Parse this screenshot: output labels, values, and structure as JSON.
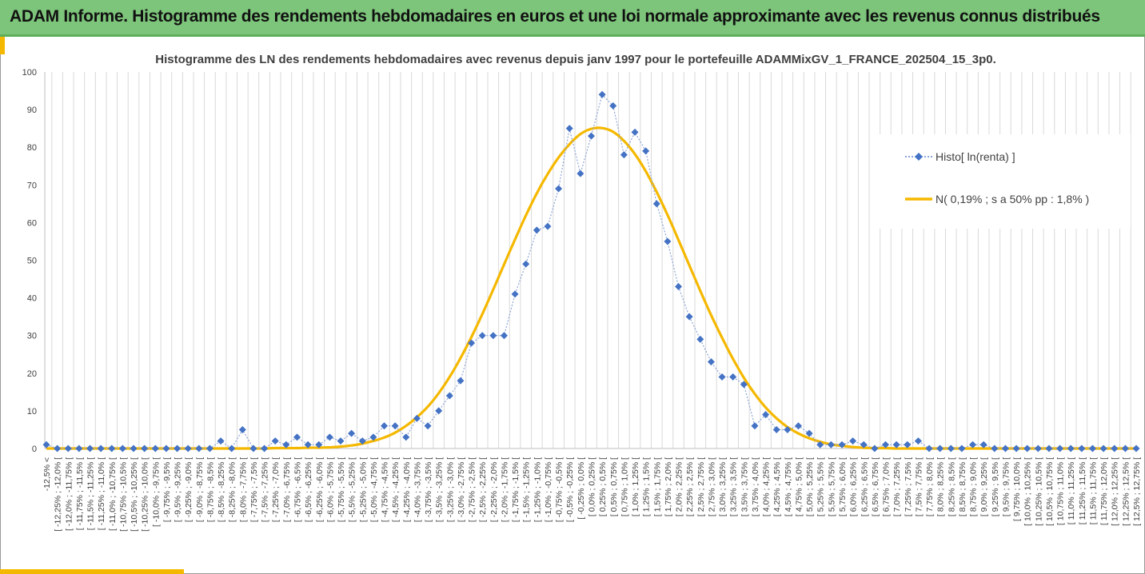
{
  "banner": {
    "title": "ADAM Informe. Histogramme des rendements hebdomadaires en euros et une loi normale approximante avec les revenus connus distribués"
  },
  "chart_data": {
    "type": "line",
    "title": "Histogramme des LN des rendements hebdomadaires avec revenus depuis janv 1997 pour le portefeuille ADAMMixGV_1_FRANCE_202504_15_3p0.",
    "ylim": [
      0,
      100
    ],
    "yticks": [
      0,
      10,
      20,
      30,
      40,
      50,
      60,
      70,
      80,
      90,
      100
    ],
    "grid": "vertical",
    "legend_position": "right",
    "categories": [
      "-12,5% <",
      "[ -12,25% ; -12,0% [",
      "[ -12,0% ; -11,75% [",
      "[ -11,75% ; -11,5% [",
      "[ -11,5% ; -11,25% [",
      "[ -11,25% ; -11,0% [",
      "[ -11,0% ; -10,75% [",
      "[ -10,75% ; -10,5% [",
      "[ -10,5% ; -10,25% [",
      "[ -10,25% ; -10,0% [",
      "[ -10,0% ; -9,75% [",
      "[ -9,75% ; -9,5% [",
      "[ -9,5% ; -9,25% [",
      "[ -9,25% ; -9,0% [",
      "[ -9,0% ; -8,75% [",
      "[ -8,75% ; -8,5% [",
      "[ -8,5% ; -8,25% [",
      "[ -8,25% ; -8,0% [",
      "[ -8,0% ; -7,75% [",
      "[ -7,75% ; -7,5% [",
      "[ -7,5% ; -7,25% [",
      "[ -7,25% ; -7,0% [",
      "[ -7,0% ; -6,75% [",
      "[ -6,75% ; -6,5% [",
      "[ -6,5% ; -6,25% [",
      "[ -6,25% ; -6,0% [",
      "[ -6,0% ; -5,75% [",
      "[ -5,75% ; -5,5% [",
      "[ -5,5% ; -5,25% [",
      "[ -5,25% ; -5,0% [",
      "[ -5,0% ; -4,75% [",
      "[ -4,75% ; -4,5% [",
      "[ -4,5% ; -4,25% [",
      "[ -4,25% ; -4,0% [",
      "[ -4,0% ; -3,75% [",
      "[ -3,75% ; -3,5% [",
      "[ -3,5% ; -3,25% [",
      "[ -3,25% ; -3,0% [",
      "[ -3,0% ; -2,75% [",
      "[ -2,75% ; -2,5% [",
      "[ -2,5% ; -2,25% [",
      "[ -2,25% ; -2,0% [",
      "[ -2,0% ; -1,75% [",
      "[ -1,75% ; -1,5% [",
      "[ -1,5% ; -1,25% [",
      "[ -1,25% ; -1,0% [",
      "[ -1,0% ; -0,75% [",
      "[ -0,75% ; -0,5% [",
      "[ -0,5% ; -0,25% [",
      "[ -0,25% ; 0,0% [",
      "[ 0,0% ; 0,25% [",
      "[ 0,25% ; 0,5% [",
      "[ 0,5% ; 0,75% [",
      "[ 0,75% ; 1,0% [",
      "[ 1,0% ; 1,25% [",
      "[ 1,25% ; 1,5% [",
      "[ 1,5% ; 1,75% [",
      "[ 1,75% ; 2,0% [",
      "[ 2,0% ; 2,25% [",
      "[ 2,25% ; 2,5% [",
      "[ 2,5% ; 2,75% [",
      "[ 2,75% ; 3,0% [",
      "[ 3,0% ; 3,25% [",
      "[ 3,25% ; 3,5% [",
      "[ 3,5% ; 3,75% [",
      "[ 3,75% ; 4,0% [",
      "[ 4,0% ; 4,25% [",
      "[ 4,25% ; 4,5% [",
      "[ 4,5% ; 4,75% [",
      "[ 4,75% ; 5,0% [",
      "[ 5,0% ; 5,25% [",
      "[ 5,25% ; 5,5% [",
      "[ 5,5% ; 5,75% [",
      "[ 5,75% ; 6,0% [",
      "[ 6,0% ; 6,25% [",
      "[ 6,25% ; 6,5% [",
      "[ 6,5% ; 6,75% [",
      "[ 6,75% ; 7,0% [",
      "[ 7,0% ; 7,25% [",
      "[ 7,25% ; 7,5% [",
      "[ 7,5% ; 7,75% [",
      "[ 7,75% ; 8,0% [",
      "[ 8,0% ; 8,25% [",
      "[ 8,25% ; 8,5% [",
      "[ 8,5% ; 8,75% [",
      "[ 8,75% ; 9,0% [",
      "[ 9,0% ; 9,25% [",
      "[ 9,25% ; 9,5% [",
      "[ 9,5% ; 9,75% [",
      "[ 9,75% ; 10,0% [",
      "[ 10,0% ; 10,25% [",
      "[ 10,25% ; 10,5% [",
      "[ 10,5% ; 10,75% [",
      "[ 10,75% ; 11,0% [",
      "[ 11,0% ; 11,25% [",
      "[ 11,25% ; 11,5% [",
      "[ 11,5% ; 11,75% [",
      "[ 11,75% ; 12,0% [",
      "[ 12,0% ; 12,25% [",
      "[ 12,25% ; 12,5% [",
      "[ 12,5% ; 12,75% ["
    ],
    "series": [
      {
        "name": "Histo[ ln(renta) ]",
        "color": "#4472c4",
        "style": "dotted-line-diamond-markers",
        "values": [
          1,
          0,
          0,
          0,
          0,
          0,
          0,
          0,
          0,
          0,
          0,
          0,
          0,
          0,
          0,
          0,
          2,
          0,
          5,
          0,
          0,
          2,
          1,
          3,
          1,
          1,
          3,
          2,
          4,
          2,
          3,
          6,
          6,
          3,
          8,
          6,
          10,
          14,
          18,
          28,
          30,
          30,
          30,
          41,
          49,
          58,
          59,
          69,
          85,
          73,
          83,
          94,
          91,
          78,
          84,
          79,
          65,
          55,
          43,
          35,
          29,
          23,
          19,
          19,
          17,
          6,
          9,
          5,
          5,
          6,
          4,
          1,
          1,
          1,
          2,
          1,
          0,
          1,
          1,
          1,
          2,
          0,
          0,
          0,
          0,
          1,
          1,
          0,
          0,
          0,
          0,
          0,
          0,
          0,
          0,
          0,
          0,
          0,
          0,
          0,
          0
        ]
      },
      {
        "name": "N( 0,19% ; s a 50% pp : 1,8% )",
        "color": "#f5b800",
        "style": "solid-smooth-line",
        "values": [
          0,
          0,
          0,
          0,
          0,
          0,
          0,
          0,
          0,
          0,
          0,
          0,
          0,
          0,
          0,
          0,
          0,
          0,
          0,
          0,
          0,
          0.1,
          0.1,
          0.1,
          0.2,
          0.2,
          0.3,
          0.5,
          0.8,
          1.3,
          2,
          2.9,
          4.2,
          6,
          8.3,
          11.1,
          14.7,
          19,
          24,
          29.6,
          35.7,
          42.2,
          48.9,
          55.5,
          61.9,
          67.8,
          72.9,
          77.3,
          80.8,
          83.5,
          84.9,
          85.1,
          84.1,
          81.7,
          78.2,
          73.6,
          68.1,
          62,
          55.4,
          48.6,
          41.9,
          35.4,
          29.4,
          23.8,
          18.8,
          14.5,
          10.9,
          8,
          5.7,
          4,
          2.7,
          1.8,
          1.1,
          0.7,
          0.4,
          0.2,
          0.1,
          0.1,
          0,
          0,
          0,
          0,
          0,
          0,
          0,
          0,
          0,
          0,
          0,
          0,
          0,
          0,
          0,
          0,
          0,
          0,
          0,
          0,
          0,
          0,
          0
        ]
      }
    ]
  }
}
